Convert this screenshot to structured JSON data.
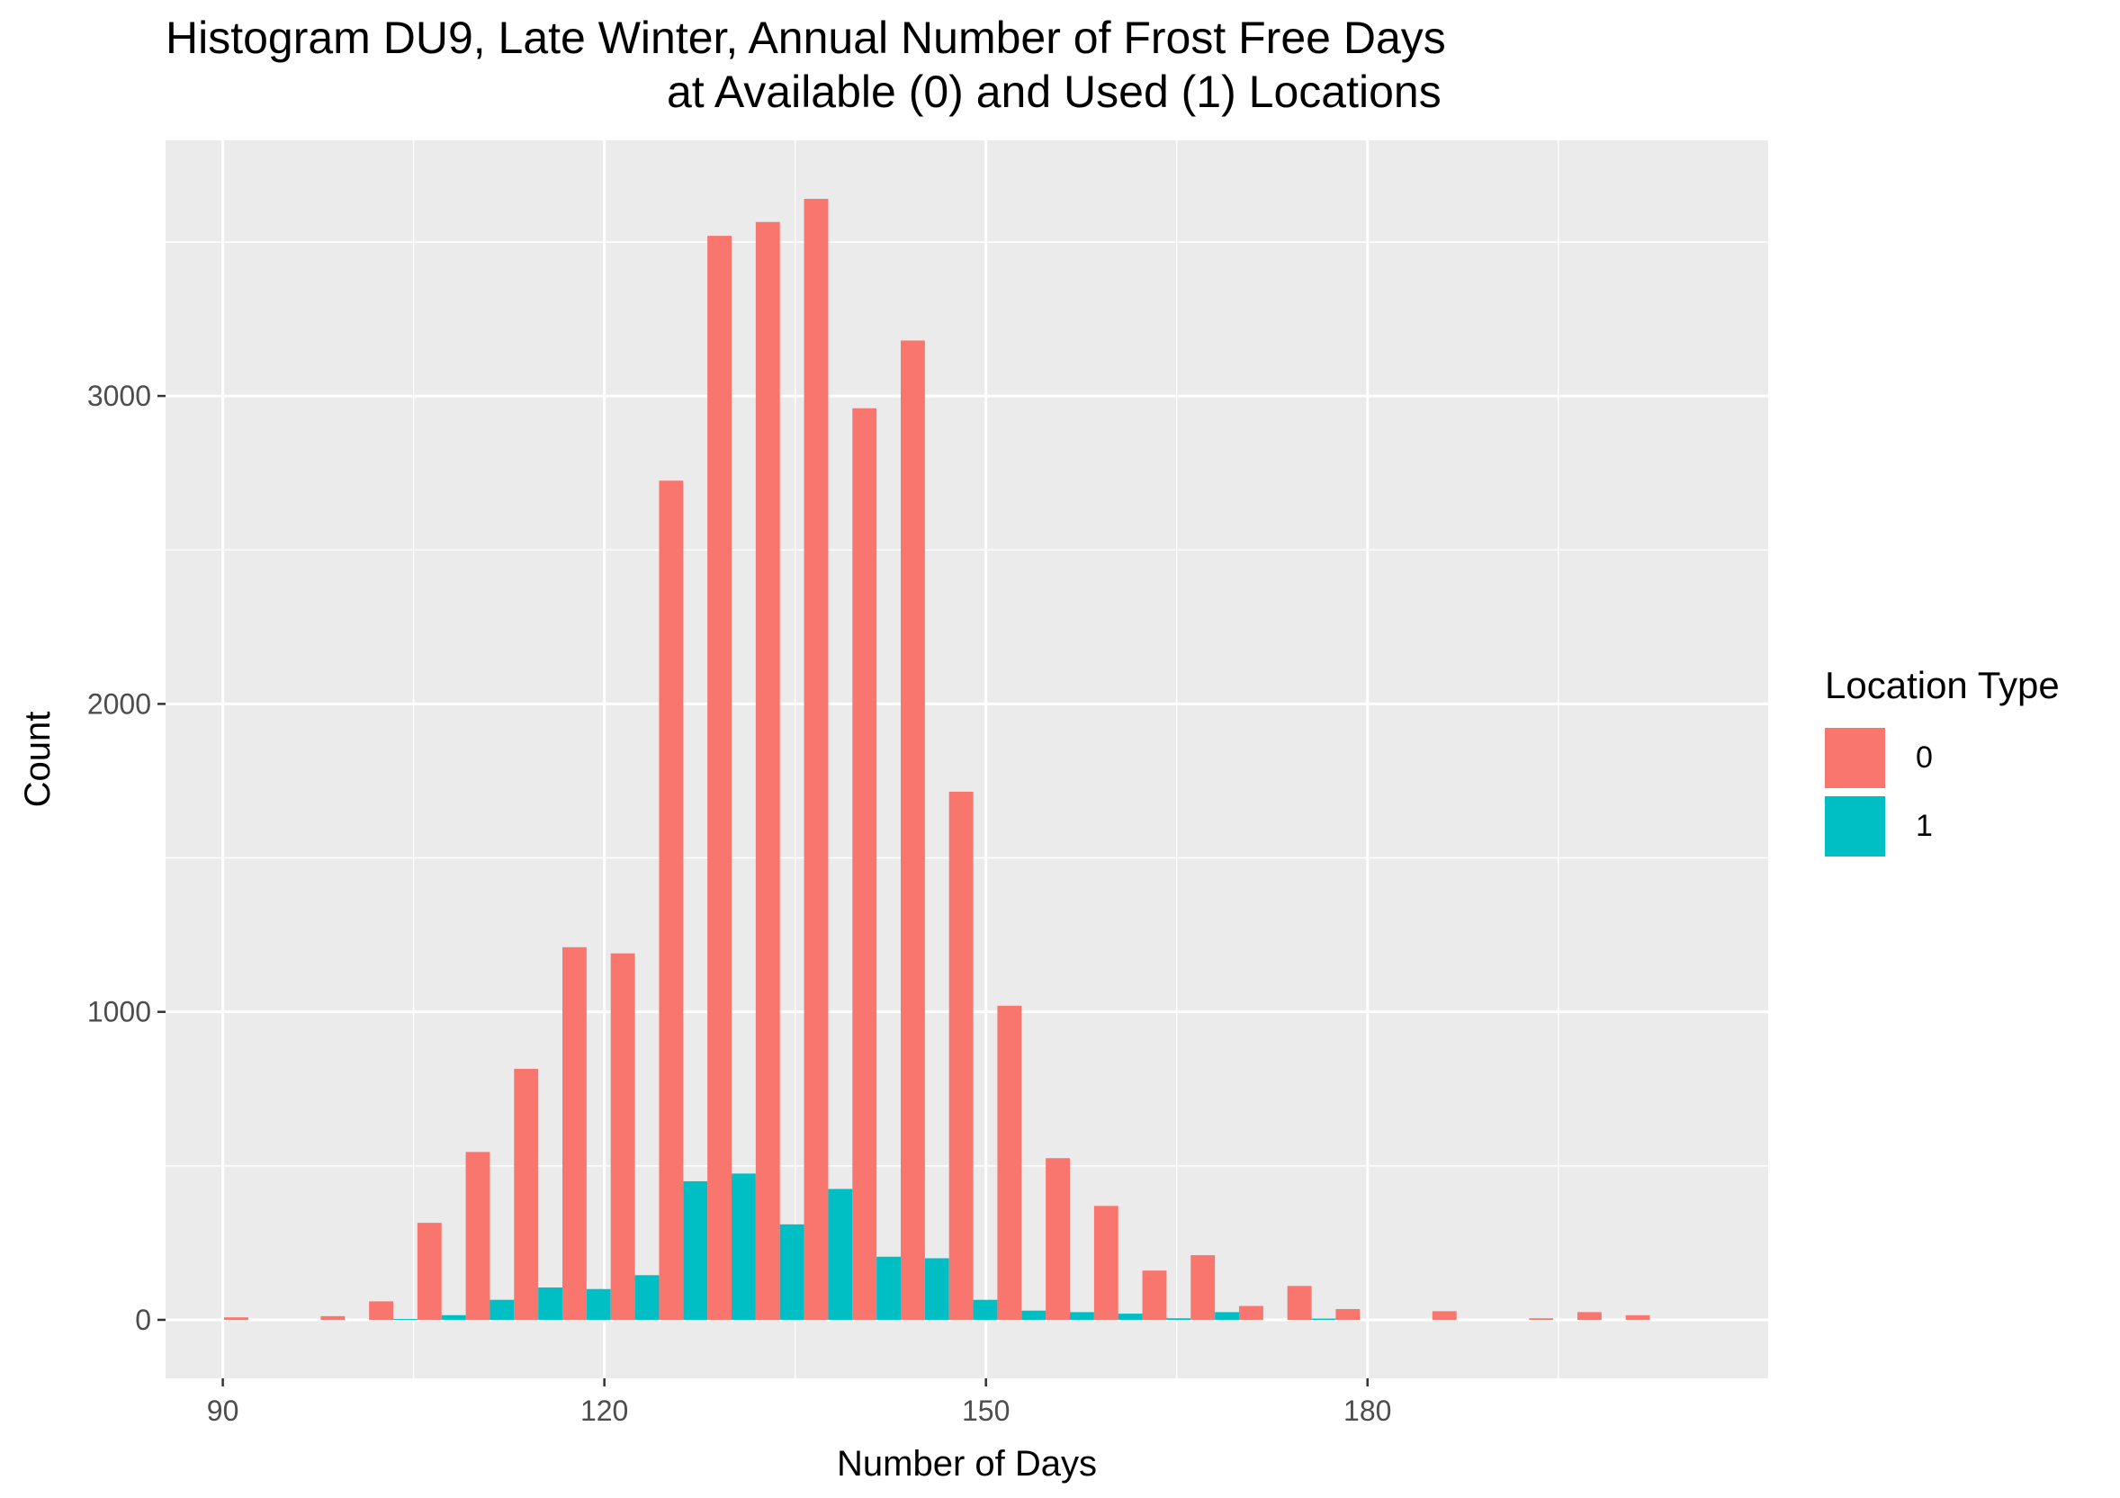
{
  "chart_data": {
    "type": "bar",
    "title": "Histogram DU9, Late Winter, Annual Number of Frost Free Days",
    "subtitle": "at Available (0) and Used (1) Locations",
    "xlabel": "Number of Days",
    "ylabel": "Count",
    "x_ticks": [
      90,
      120,
      150,
      180
    ],
    "y_ticks": [
      0,
      1000,
      2000,
      3000
    ],
    "xlim": [
      85.5,
      211.5
    ],
    "ylim": [
      -190,
      3830
    ],
    "grid": true,
    "legend": {
      "title": "Location Type",
      "position": "right",
      "entries": [
        "0",
        "1"
      ]
    },
    "bin_width": 3.8,
    "x": [
      92,
      95.8,
      99.6,
      103.4,
      107.2,
      111,
      114.8,
      118.6,
      122.4,
      126.2,
      130,
      133.8,
      137.6,
      141.4,
      145.2,
      149,
      152.8,
      156.6,
      160.4,
      164.2,
      168,
      171.8,
      175.6,
      179.4,
      183.2,
      187,
      190.8,
      194.6,
      198.4,
      202.2,
      206
    ],
    "series": [
      {
        "name": "0",
        "color": "#F8766D",
        "values": [
          8,
          0,
          12,
          60,
          315,
          545,
          815,
          1210,
          1190,
          2725,
          3520,
          3565,
          3640,
          2960,
          3180,
          1715,
          1020,
          525,
          370,
          160,
          210,
          45,
          110,
          35,
          0,
          28,
          0,
          5,
          25,
          15,
          0
        ]
      },
      {
        "name": "1",
        "color": "#00BFC4",
        "values": [
          0,
          0,
          0,
          3,
          15,
          65,
          105,
          100,
          145,
          450,
          475,
          310,
          425,
          205,
          200,
          65,
          30,
          25,
          20,
          5,
          25,
          0,
          4,
          0,
          0,
          0,
          0,
          0,
          0,
          0,
          0
        ]
      }
    ]
  }
}
